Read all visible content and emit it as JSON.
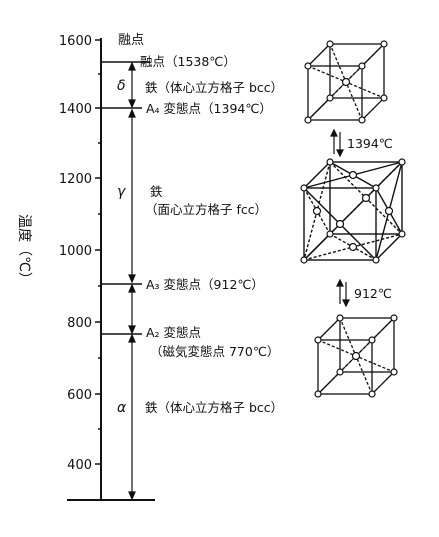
{
  "axis": {
    "label": "温度（℃）",
    "ticks": [
      "1600",
      "1400",
      "1200",
      "1000",
      "800",
      "600",
      "400"
    ]
  },
  "top_label": "融点",
  "phases": {
    "melting_point": "融点（1538℃）",
    "delta": {
      "symbol": "δ",
      "text": "鉄（体心立方格子 bcc）"
    },
    "a4": "A₄ 変態点（1394℃）",
    "gamma": {
      "symbol": "γ",
      "text": "鉄",
      "subtext": "（面心立方格子 fcc）"
    },
    "a3": "A₃ 変態点（912℃）",
    "a2": {
      "text": "A₂ 変態点",
      "subtext": "（磁気変態点 770℃）"
    },
    "alpha": {
      "symbol": "α",
      "text": "鉄（体心立方格子 bcc）"
    }
  },
  "transitions": {
    "upper": "1394℃",
    "lower": "912℃"
  },
  "structures": {
    "top": "bcc",
    "middle": "fcc",
    "bottom": "bcc"
  }
}
